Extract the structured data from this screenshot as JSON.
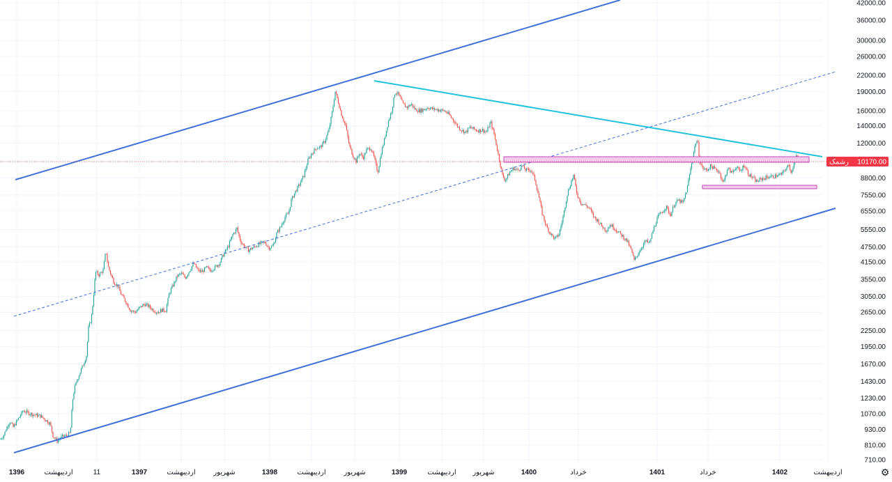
{
  "chart_data": {
    "type": "candlestick",
    "scale": "log",
    "grid": true,
    "y_ticks": [
      "42000.00",
      "36000.00",
      "30000.00",
      "26000.00",
      "22000.00",
      "19000.00",
      "16000.00",
      "14000.00",
      "12000.00",
      "10170.00",
      "8800.00",
      "7550.00",
      "6550.00",
      "5550.00",
      "4750.00",
      "4150.00",
      "3550.00",
      "3050.00",
      "2650.00",
      "2250.00",
      "1950.00",
      "1670.00",
      "1430.00",
      "1230.00",
      "1070.00",
      "930.00",
      "810.00",
      "710.00"
    ],
    "y_tick_values": [
      42000,
      36000,
      30000,
      26000,
      22000,
      19000,
      16000,
      14000,
      12000,
      10170,
      8800,
      7550,
      6550,
      5550,
      4750,
      4150,
      3550,
      3050,
      2650,
      2250,
      1950,
      1670,
      1430,
      1230,
      1070,
      930,
      810,
      710
    ],
    "x_ticks": [
      {
        "label": "1396",
        "bold": true
      },
      {
        "label": "اردیبهشت",
        "bold": false
      },
      {
        "label": "11",
        "bold": false
      },
      {
        "label": "1397",
        "bold": true
      },
      {
        "label": "اردیبهشت",
        "bold": false
      },
      {
        "label": "شهریور",
        "bold": false
      },
      {
        "label": "1398",
        "bold": true
      },
      {
        "label": "اردیبهشت",
        "bold": false
      },
      {
        "label": "شهریور",
        "bold": false
      },
      {
        "label": "1399",
        "bold": true
      },
      {
        "label": "اردیبهشت",
        "bold": false
      },
      {
        "label": "شهریور",
        "bold": false
      },
      {
        "label": "1400",
        "bold": true
      },
      {
        "label": "خرداد",
        "bold": false
      },
      {
        "label": "1401",
        "bold": true
      },
      {
        "label": "خرداد",
        "bold": false
      },
      {
        "label": "1402",
        "bold": true
      },
      {
        "label": "اردیبهشت",
        "bold": false
      }
    ],
    "price_series": [
      [
        0,
        850
      ],
      [
        5,
        880
      ],
      [
        10,
        950
      ],
      [
        14,
        1000
      ],
      [
        19,
        950
      ],
      [
        26,
        1020
      ],
      [
        33,
        1100
      ],
      [
        40,
        1080
      ],
      [
        49,
        1060
      ],
      [
        58,
        1050
      ],
      [
        68,
        1000
      ],
      [
        72,
        980
      ],
      [
        76,
        880
      ],
      [
        82,
        840
      ],
      [
        88,
        870
      ],
      [
        95,
        880
      ],
      [
        101,
        900
      ],
      [
        104,
        1200
      ],
      [
        107,
        1350
      ],
      [
        112,
        1480
      ],
      [
        117,
        1600
      ],
      [
        121,
        1700
      ],
      [
        124,
        1800
      ],
      [
        127,
        2300
      ],
      [
        131,
        2500
      ],
      [
        134,
        3000
      ],
      [
        137,
        3800
      ],
      [
        142,
        3700
      ],
      [
        148,
        3850
      ],
      [
        152,
        4600
      ],
      [
        155,
        4000
      ],
      [
        160,
        3650
      ],
      [
        164,
        3450
      ],
      [
        169,
        3350
      ],
      [
        174,
        3100
      ],
      [
        181,
        2900
      ],
      [
        187,
        2700
      ],
      [
        194,
        2650
      ],
      [
        200,
        2750
      ],
      [
        207,
        2850
      ],
      [
        213,
        2800
      ],
      [
        220,
        2700
      ],
      [
        226,
        2650
      ],
      [
        232,
        2700
      ],
      [
        238,
        2700
      ],
      [
        243,
        3150
      ],
      [
        249,
        3400
      ],
      [
        254,
        3650
      ],
      [
        260,
        3750
      ],
      [
        266,
        3600
      ],
      [
        272,
        3850
      ],
      [
        278,
        4100
      ],
      [
        284,
        3850
      ],
      [
        290,
        3800
      ],
      [
        296,
        3950
      ],
      [
        302,
        3850
      ],
      [
        308,
        3950
      ],
      [
        315,
        4100
      ],
      [
        320,
        4400
      ],
      [
        328,
        4800
      ],
      [
        334,
        5300
      ],
      [
        340,
        5600
      ],
      [
        345,
        5000
      ],
      [
        350,
        4800
      ],
      [
        356,
        4600
      ],
      [
        362,
        4700
      ],
      [
        368,
        4800
      ],
      [
        374,
        4900
      ],
      [
        380,
        4950
      ],
      [
        386,
        4700
      ],
      [
        392,
        4800
      ],
      [
        397,
        5350
      ],
      [
        403,
        5700
      ],
      [
        409,
        6200
      ],
      [
        414,
        6400
      ],
      [
        418,
        7200
      ],
      [
        424,
        7800
      ],
      [
        430,
        8300
      ],
      [
        436,
        9000
      ],
      [
        442,
        10300
      ],
      [
        448,
        11000
      ],
      [
        454,
        11500
      ],
      [
        460,
        11600
      ],
      [
        466,
        12200
      ],
      [
        472,
        13500
      ],
      [
        477,
        16000
      ],
      [
        481,
        19000
      ],
      [
        485,
        17500
      ],
      [
        490,
        15500
      ],
      [
        496,
        14000
      ],
      [
        501,
        11800
      ],
      [
        506,
        10800
      ],
      [
        511,
        10200
      ],
      [
        516,
        11000
      ],
      [
        521,
        10500
      ],
      [
        526,
        11300
      ],
      [
        532,
        11500
      ],
      [
        537,
        10500
      ],
      [
        542,
        9200
      ],
      [
        547,
        11000
      ],
      [
        552,
        12500
      ],
      [
        557,
        14500
      ],
      [
        562,
        16000
      ],
      [
        567,
        19000
      ],
      [
        572,
        18500
      ],
      [
        578,
        17000
      ],
      [
        584,
        16500
      ],
      [
        590,
        17000
      ],
      [
        596,
        16200
      ],
      [
        602,
        16000
      ],
      [
        608,
        16200
      ],
      [
        614,
        16500
      ],
      [
        620,
        16300
      ],
      [
        626,
        16200
      ],
      [
        632,
        16100
      ],
      [
        638,
        16000
      ],
      [
        644,
        15500
      ],
      [
        650,
        14800
      ],
      [
        656,
        14000
      ],
      [
        662,
        13500
      ],
      [
        668,
        13200
      ],
      [
        674,
        13800
      ],
      [
        680,
        13600
      ],
      [
        686,
        13400
      ],
      [
        692,
        13500
      ],
      [
        698,
        13200
      ],
      [
        704,
        14500
      ],
      [
        709,
        13000
      ],
      [
        713,
        11500
      ],
      [
        717,
        10200
      ],
      [
        721,
        9000
      ],
      [
        725,
        8600
      ],
      [
        731,
        9200
      ],
      [
        737,
        9600
      ],
      [
        743,
        9400
      ],
      [
        749,
        9800
      ],
      [
        755,
        9400
      ],
      [
        761,
        9500
      ],
      [
        767,
        8800
      ],
      [
        772,
        7700
      ],
      [
        778,
        6400
      ],
      [
        784,
        5700
      ],
      [
        790,
        5350
      ],
      [
        796,
        5100
      ],
      [
        802,
        5300
      ],
      [
        808,
        6200
      ],
      [
        814,
        7600
      ],
      [
        819,
        8400
      ],
      [
        823,
        9000
      ],
      [
        828,
        7600
      ],
      [
        834,
        7000
      ],
      [
        840,
        6900
      ],
      [
        846,
        6700
      ],
      [
        852,
        6200
      ],
      [
        858,
        6000
      ],
      [
        864,
        5700
      ],
      [
        870,
        5500
      ],
      [
        876,
        5800
      ],
      [
        882,
        5600
      ],
      [
        888,
        5400
      ],
      [
        894,
        5200
      ],
      [
        900,
        5000
      ],
      [
        906,
        4600
      ],
      [
        910,
        4200
      ],
      [
        914,
        4400
      ],
      [
        920,
        4700
      ],
      [
        926,
        5000
      ],
      [
        932,
        4900
      ],
      [
        938,
        5600
      ],
      [
        944,
        6200
      ],
      [
        950,
        6500
      ],
      [
        956,
        6800
      ],
      [
        962,
        6300
      ],
      [
        968,
        7000
      ],
      [
        974,
        7200
      ],
      [
        980,
        7000
      ],
      [
        986,
        8000
      ],
      [
        990,
        9200
      ],
      [
        994,
        10600
      ],
      [
        998,
        12000
      ],
      [
        1001,
        12300
      ],
      [
        1004,
        10200
      ],
      [
        1008,
        9600
      ],
      [
        1014,
        9400
      ],
      [
        1020,
        9800
      ],
      [
        1026,
        9500
      ],
      [
        1032,
        9300
      ],
      [
        1038,
        8400
      ],
      [
        1044,
        9600
      ],
      [
        1050,
        9200
      ],
      [
        1056,
        9700
      ],
      [
        1062,
        9300
      ],
      [
        1068,
        9900
      ],
      [
        1074,
        9100
      ],
      [
        1080,
        8800
      ],
      [
        1086,
        8500
      ],
      [
        1092,
        8700
      ],
      [
        1098,
        8800
      ],
      [
        1104,
        8900
      ],
      [
        1110,
        8900
      ],
      [
        1116,
        9000
      ],
      [
        1122,
        9100
      ],
      [
        1128,
        9600
      ],
      [
        1132,
        9800
      ],
      [
        1136,
        9200
      ],
      [
        1140,
        10300
      ],
      [
        1143,
        10800
      ],
      [
        1146,
        10170
      ]
    ],
    "price_label": {
      "text": "10170.00",
      "sublabel": "رشمک‎"
    },
    "annotations": [
      "upper channel line",
      "lower channel line",
      "dashed midline",
      "descending resistance line",
      "resistance zone rectangle",
      "support zone rectangle"
    ]
  },
  "colors": {
    "up": "#26a69a",
    "down": "#ef5350",
    "channel": "#3f6fd8",
    "resistance": "#21c2dc",
    "zone_fill": "#f4c9ee",
    "zone_stroke": "#c04bb4",
    "price_label": "#f23645",
    "grid": "#f0f3fa"
  },
  "icons": {
    "settings": "gear-icon"
  }
}
